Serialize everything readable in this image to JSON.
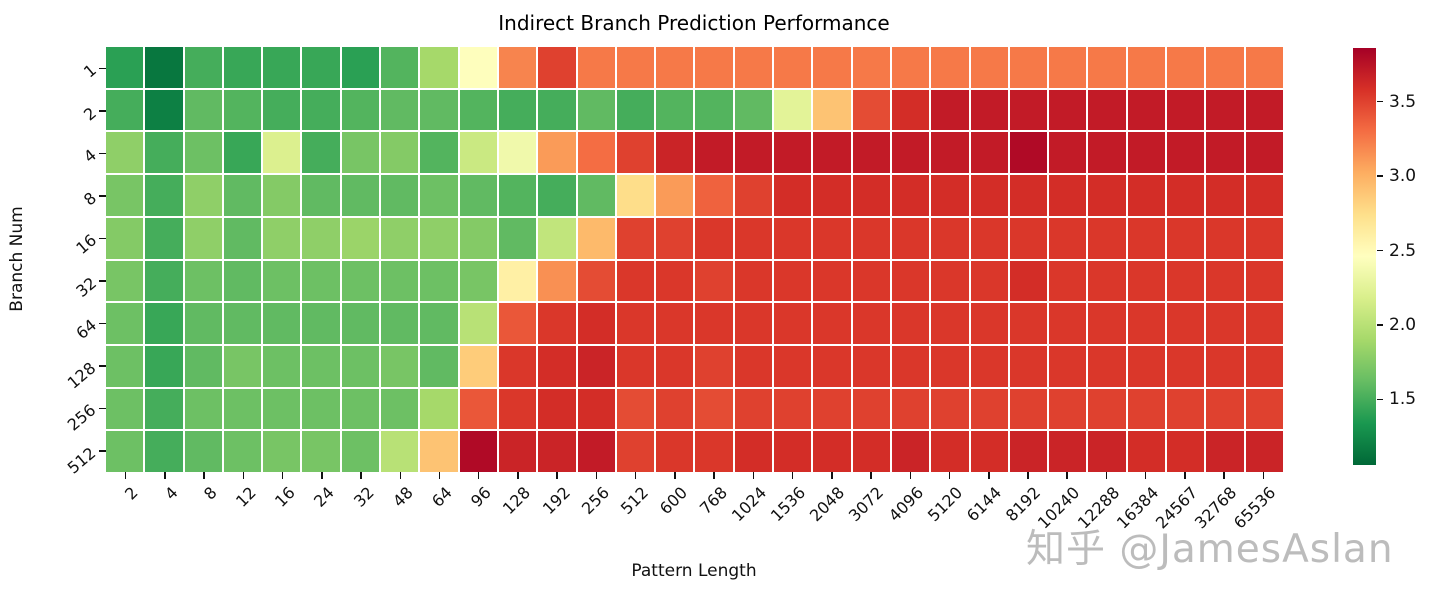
{
  "title": "Indirect Branch Prediction Performance",
  "watermark": "知乎 @JamesAslan",
  "colors": {
    "background": "#ffffff",
    "cell_grid_lines": "#ffffff",
    "tick_text": "#111111",
    "watermark_text": "#bcbcbc"
  },
  "chart_data": {
    "type": "heatmap",
    "title": "Indirect Branch Prediction Performance",
    "xlabel": "Pattern Length",
    "ylabel": "Branch Num",
    "colormap": "RdYlGn_r",
    "vmin": 1.06,
    "vmax": 3.86,
    "colorbar_ticks": [
      3.5,
      3.0,
      2.5,
      2.0,
      1.5
    ],
    "colorbar_position": "right",
    "grid_lines": true,
    "x_categories": [
      "2",
      "4",
      "8",
      "12",
      "16",
      "24",
      "32",
      "48",
      "64",
      "96",
      "128",
      "192",
      "256",
      "512",
      "600",
      "768",
      "1024",
      "1536",
      "2048",
      "3072",
      "4096",
      "5120",
      "6144",
      "8192",
      "10240",
      "12288",
      "16384",
      "24567",
      "32768",
      "65536"
    ],
    "y_categories": [
      "1",
      "2",
      "4",
      "8",
      "16",
      "32",
      "64",
      "128",
      "256",
      "512"
    ],
    "values": [
      [
        1.4,
        1.15,
        1.5,
        1.45,
        1.45,
        1.45,
        1.4,
        1.55,
        1.9,
        2.45,
        3.2,
        3.5,
        3.25,
        3.25,
        3.25,
        3.25,
        3.25,
        3.25,
        3.25,
        3.25,
        3.25,
        3.25,
        3.25,
        3.25,
        3.25,
        3.25,
        3.25,
        3.25,
        3.25,
        3.25
      ],
      [
        1.5,
        1.2,
        1.6,
        1.55,
        1.5,
        1.5,
        1.55,
        1.6,
        1.6,
        1.55,
        1.5,
        1.5,
        1.6,
        1.5,
        1.55,
        1.55,
        1.6,
        2.25,
        2.9,
        3.45,
        3.6,
        3.7,
        3.7,
        3.7,
        3.7,
        3.7,
        3.7,
        3.7,
        3.7,
        3.7
      ],
      [
        1.8,
        1.5,
        1.65,
        1.45,
        2.2,
        1.5,
        1.7,
        1.75,
        1.55,
        2.1,
        2.35,
        3.1,
        3.3,
        3.5,
        3.65,
        3.7,
        3.7,
        3.7,
        3.7,
        3.7,
        3.7,
        3.7,
        3.7,
        3.8,
        3.7,
        3.7,
        3.7,
        3.7,
        3.7,
        3.7
      ],
      [
        1.7,
        1.5,
        1.8,
        1.6,
        1.75,
        1.6,
        1.6,
        1.6,
        1.65,
        1.6,
        1.55,
        1.5,
        1.6,
        2.75,
        3.1,
        3.35,
        3.5,
        3.6,
        3.6,
        3.6,
        3.6,
        3.6,
        3.6,
        3.6,
        3.6,
        3.6,
        3.6,
        3.6,
        3.6,
        3.6
      ],
      [
        1.75,
        1.5,
        1.8,
        1.6,
        1.8,
        1.8,
        1.85,
        1.8,
        1.8,
        1.75,
        1.6,
        2.05,
        2.95,
        3.5,
        3.5,
        3.55,
        3.55,
        3.55,
        3.55,
        3.55,
        3.55,
        3.55,
        3.55,
        3.55,
        3.55,
        3.55,
        3.55,
        3.55,
        3.55,
        3.55
      ],
      [
        1.7,
        1.5,
        1.65,
        1.6,
        1.65,
        1.65,
        1.65,
        1.65,
        1.65,
        1.7,
        2.6,
        3.15,
        3.45,
        3.55,
        3.55,
        3.5,
        3.55,
        3.55,
        3.55,
        3.55,
        3.55,
        3.55,
        3.55,
        3.6,
        3.55,
        3.55,
        3.55,
        3.55,
        3.55,
        3.55
      ],
      [
        1.65,
        1.45,
        1.6,
        1.6,
        1.6,
        1.6,
        1.6,
        1.6,
        1.6,
        2.0,
        3.4,
        3.55,
        3.6,
        3.55,
        3.55,
        3.55,
        3.55,
        3.55,
        3.55,
        3.55,
        3.55,
        3.55,
        3.55,
        3.55,
        3.55,
        3.55,
        3.55,
        3.55,
        3.55,
        3.55
      ],
      [
        1.65,
        1.45,
        1.6,
        1.7,
        1.65,
        1.65,
        1.65,
        1.7,
        1.6,
        2.85,
        3.55,
        3.6,
        3.65,
        3.55,
        3.55,
        3.5,
        3.55,
        3.55,
        3.55,
        3.55,
        3.55,
        3.55,
        3.55,
        3.55,
        3.55,
        3.55,
        3.55,
        3.55,
        3.55,
        3.55
      ],
      [
        1.65,
        1.5,
        1.65,
        1.65,
        1.65,
        1.65,
        1.65,
        1.65,
        1.9,
        3.4,
        3.55,
        3.6,
        3.6,
        3.45,
        3.5,
        3.45,
        3.5,
        3.5,
        3.5,
        3.5,
        3.5,
        3.5,
        3.5,
        3.5,
        3.5,
        3.5,
        3.5,
        3.5,
        3.5,
        3.5
      ],
      [
        1.65,
        1.5,
        1.6,
        1.65,
        1.7,
        1.7,
        1.65,
        2.0,
        2.9,
        3.8,
        3.65,
        3.65,
        3.7,
        3.5,
        3.55,
        3.55,
        3.6,
        3.6,
        3.6,
        3.6,
        3.65,
        3.6,
        3.6,
        3.65,
        3.65,
        3.65,
        3.6,
        3.6,
        3.65,
        3.65
      ]
    ]
  }
}
